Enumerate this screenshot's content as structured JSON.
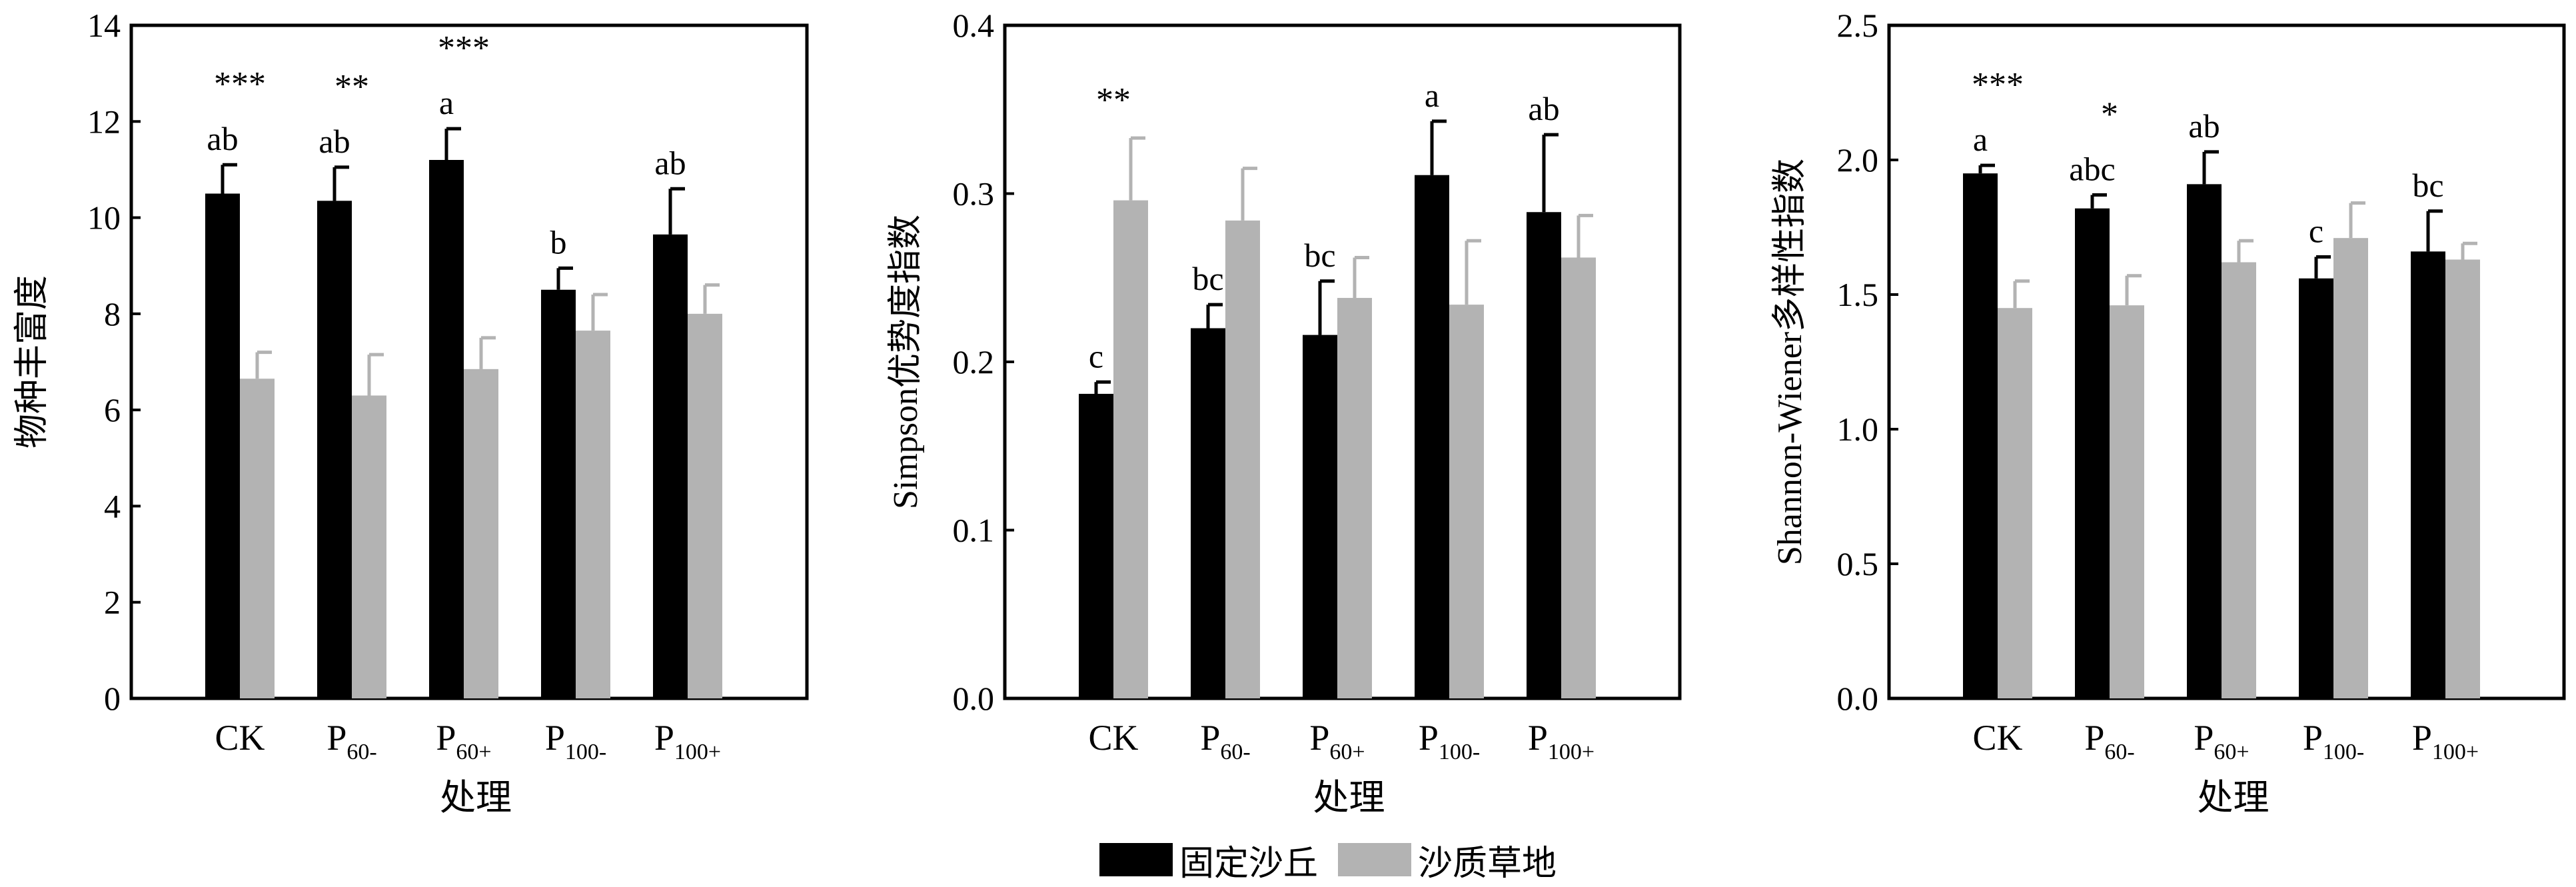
{
  "legend": {
    "items": [
      {
        "label": "固定沙丘",
        "color": "#000000"
      },
      {
        "label": "沙质草地",
        "color": "#b3b3b3"
      }
    ]
  },
  "chart_data": [
    {
      "type": "bar",
      "ylabel": "物种丰富度",
      "xlabel": "处理",
      "ylim": [
        0,
        14
      ],
      "yticks": [
        "0",
        "2",
        "4",
        "6",
        "8",
        "10",
        "12",
        "14"
      ],
      "categories": [
        {
          "main": "CK",
          "sub": ""
        },
        {
          "main": "P",
          "sub": "60-"
        },
        {
          "main": "P",
          "sub": "60+"
        },
        {
          "main": "P",
          "sub": "100-"
        },
        {
          "main": "P",
          "sub": "100+"
        }
      ],
      "series": [
        {
          "name": "固定沙丘",
          "color": "#000000",
          "values": [
            10.5,
            10.35,
            11.2,
            8.5,
            9.65
          ],
          "errors": [
            0.6,
            0.7,
            0.65,
            0.45,
            0.95
          ]
        },
        {
          "name": "沙质草地",
          "color": "#b3b3b3",
          "values": [
            6.65,
            6.3,
            6.85,
            7.65,
            8.0
          ],
          "errors": [
            0.55,
            0.85,
            0.65,
            0.75,
            0.6
          ]
        }
      ],
      "letters": [
        "ab",
        "ab",
        "a",
        "b",
        "ab"
      ],
      "stars": [
        "***",
        "**",
        "***",
        "",
        ""
      ]
    },
    {
      "type": "bar",
      "ylabel": "Simpson优势度指数",
      "xlabel": "处理",
      "ylim": [
        0,
        0.4
      ],
      "yticks": [
        "0.0",
        "0.1",
        "0.2",
        "0.3",
        "0.4"
      ],
      "categories": [
        {
          "main": "CK",
          "sub": ""
        },
        {
          "main": "P",
          "sub": "60-"
        },
        {
          "main": "P",
          "sub": "60+"
        },
        {
          "main": "P",
          "sub": "100-"
        },
        {
          "main": "P",
          "sub": "100+"
        }
      ],
      "series": [
        {
          "name": "固定沙丘",
          "color": "#000000",
          "values": [
            0.181,
            0.22,
            0.216,
            0.311,
            0.289
          ],
          "errors": [
            0.007,
            0.014,
            0.032,
            0.032,
            0.046
          ]
        },
        {
          "name": "沙质草地",
          "color": "#b3b3b3",
          "values": [
            0.296,
            0.284,
            0.238,
            0.234,
            0.262
          ],
          "errors": [
            0.037,
            0.031,
            0.024,
            0.038,
            0.025
          ]
        }
      ],
      "letters": [
        "c",
        "bc",
        "bc",
        "a",
        "ab"
      ],
      "stars": [
        "**",
        "",
        "",
        "",
        ""
      ]
    },
    {
      "type": "bar",
      "ylabel": "Shannon-Wiener多样性指数",
      "xlabel": "处理",
      "ylim": [
        0,
        2.5
      ],
      "yticks": [
        "0.0",
        "0.5",
        "1.0",
        "1.5",
        "2.0",
        "2.5"
      ],
      "categories": [
        {
          "main": "CK",
          "sub": ""
        },
        {
          "main": "P",
          "sub": "60-"
        },
        {
          "main": "P",
          "sub": "60+"
        },
        {
          "main": "P",
          "sub": "100-"
        },
        {
          "main": "P",
          "sub": "100+"
        }
      ],
      "series": [
        {
          "name": "固定沙丘",
          "color": "#000000",
          "values": [
            1.95,
            1.82,
            1.91,
            1.56,
            1.66
          ],
          "errors": [
            0.03,
            0.05,
            0.12,
            0.08,
            0.15
          ]
        },
        {
          "name": "沙质草地",
          "color": "#b3b3b3",
          "values": [
            1.45,
            1.46,
            1.62,
            1.71,
            1.63
          ],
          "errors": [
            0.1,
            0.11,
            0.08,
            0.13,
            0.06
          ]
        }
      ],
      "letters": [
        "a",
        "abc",
        "ab",
        "c",
        "bc"
      ],
      "stars": [
        "***",
        "*",
        "",
        "",
        ""
      ]
    }
  ]
}
